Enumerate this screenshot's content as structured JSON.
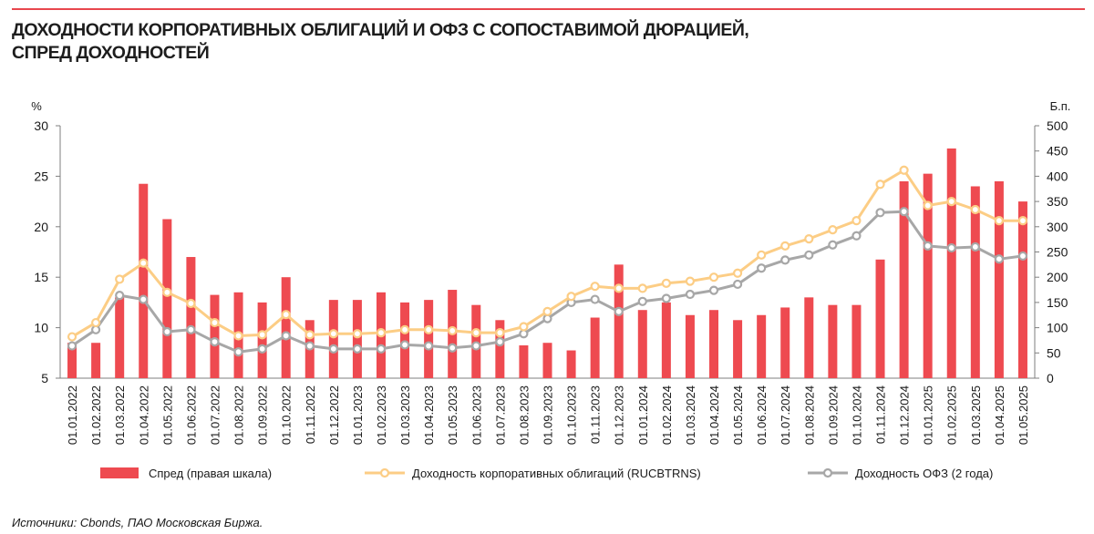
{
  "header": {
    "title_line1": "ДОХОДНОСТИ КОРПОРАТИВНЫХ ОБЛИГАЦИЙ И ОФЗ С СОПОСТАВИМОЙ ДЮРАЦИЕЙ,",
    "title_line2": "СПРЕД ДОХОДНОСТЕЙ"
  },
  "source": "Источники: Cbonds, ПАО Московская Биржа.",
  "colors": {
    "accent_line": "#e8474e",
    "spread": "#ee4a50",
    "corp": "#fccd85",
    "ofz": "#a7a7a7"
  },
  "chart_data": {
    "type": "bar+line",
    "left_axis": {
      "label": "%",
      "ylim": [
        5,
        30
      ],
      "ticks": [
        5,
        10,
        15,
        20,
        25,
        30
      ]
    },
    "right_axis": {
      "label": "Б.п.",
      "ylim": [
        0,
        500
      ],
      "ticks": [
        0,
        50,
        100,
        150,
        200,
        250,
        300,
        350,
        400,
        450,
        500
      ]
    },
    "categories": [
      "01.01.2022",
      "01.02.2022",
      "01.03.2022",
      "01.04.2022",
      "01.05.2022",
      "01.06.2022",
      "01.07.2022",
      "01.08.2022",
      "01.09.2022",
      "01.10.2022",
      "01.11.2022",
      "01.12.2022",
      "01.01.2023",
      "01.02.2023",
      "01.03.2023",
      "01.04.2023",
      "01.05.2023",
      "01.06.2023",
      "01.07.2023",
      "01.08.2023",
      "01.09.2023",
      "01.10.2023",
      "01.11.2023",
      "01.12.2023",
      "01.01.2024",
      "01.02.2024",
      "01.03.2024",
      "01.04.2024",
      "01.05.2024",
      "01.06.2024",
      "01.07.2024",
      "01.08.2024",
      "01.09.2024",
      "01.10.2024",
      "01.11.2024",
      "01.12.2024",
      "01.01.2025",
      "01.02.2025",
      "01.03.2025",
      "01.04.2025",
      "01.05.2025"
    ],
    "series": [
      {
        "name": "Спред (правая шкала)",
        "type": "bar",
        "axis": "right",
        "values": [
          70,
          70,
          160,
          385,
          315,
          240,
          165,
          170,
          150,
          200,
          115,
          155,
          155,
          170,
          150,
          155,
          175,
          145,
          115,
          65,
          70,
          55,
          120,
          225,
          135,
          150,
          125,
          135,
          115,
          125,
          140,
          160,
          145,
          145,
          235,
          390,
          405,
          455,
          380,
          390,
          350
        ]
      },
      {
        "name": "Доходность корпоративных облигаций (RUCBTRNS)",
        "type": "line",
        "axis": "left",
        "values": [
          9.1,
          10.5,
          14.8,
          16.4,
          13.5,
          12.4,
          10.5,
          9.2,
          9.3,
          11.3,
          9.3,
          9.4,
          9.4,
          9.5,
          9.8,
          9.8,
          9.7,
          9.5,
          9.5,
          10.1,
          11.6,
          13.1,
          14.1,
          13.9,
          13.9,
          14.4,
          14.6,
          15.0,
          15.4,
          17.2,
          18.1,
          18.8,
          19.7,
          20.6,
          24.2,
          25.6,
          22.1,
          22.5,
          21.7,
          20.6,
          20.6
        ]
      },
      {
        "name": "Доходность ОФЗ (2 года)",
        "type": "line",
        "axis": "left",
        "values": [
          8.2,
          9.8,
          13.2,
          12.8,
          9.6,
          9.8,
          8.6,
          7.6,
          7.9,
          9.2,
          8.2,
          7.9,
          7.9,
          7.9,
          8.3,
          8.2,
          8.0,
          8.2,
          8.6,
          9.4,
          10.9,
          12.5,
          12.8,
          11.6,
          12.6,
          12.9,
          13.3,
          13.7,
          14.3,
          15.9,
          16.7,
          17.2,
          18.2,
          19.1,
          21.4,
          21.5,
          18.1,
          17.9,
          18.0,
          16.8,
          17.1
        ]
      }
    ],
    "legend_placement": "bottom",
    "grid": false
  }
}
